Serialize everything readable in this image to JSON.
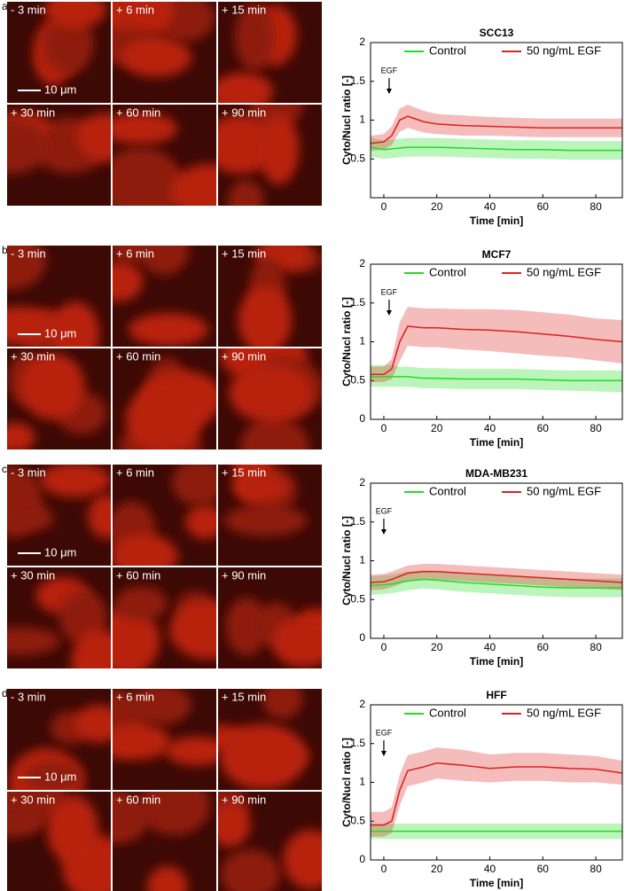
{
  "panels": [
    {
      "label": "a.",
      "images": [
        "- 3 min",
        "+ 6 min",
        "+ 15 min",
        "+ 30 min",
        "+ 60 min",
        "+ 90 min"
      ],
      "scale_bar": "10 μm"
    },
    {
      "label": "b.",
      "images": [
        "- 3 min",
        "+ 6 min",
        "+ 15 min",
        "+ 30 min",
        "+ 60 min",
        "+ 90 min"
      ],
      "scale_bar": "10 μm"
    },
    {
      "label": "c.",
      "images": [
        "- 3 min",
        "+ 6 min",
        "+ 15 min",
        "+ 30 min",
        "+ 60 min",
        "+ 90 min"
      ],
      "scale_bar": "10 μm"
    },
    {
      "label": "d.",
      "images": [
        "- 3 min",
        "+ 6 min",
        "+ 15 min",
        "+ 30 min",
        "+ 60 min",
        "+ 90 min"
      ],
      "scale_bar": "10 μm"
    }
  ],
  "chart_data": [
    {
      "type": "line",
      "title": "SCC13",
      "xlabel": "Time [min]",
      "ylabel": "Cyto/Nucl ratio [-]",
      "annotation": "EGF",
      "annotation_x": 2,
      "x": [
        -5,
        0,
        3,
        6,
        9,
        15,
        20,
        30,
        40,
        50,
        60,
        70,
        80,
        90
      ],
      "xlim": [
        -5,
        90
      ],
      "xticks": [
        0,
        20,
        40,
        60,
        80
      ],
      "ylim": [
        0,
        2
      ],
      "yticks": [
        0.5,
        1,
        1.5,
        2
      ],
      "series": [
        {
          "name": "Control",
          "color": "#22dd22",
          "values": [
            0.65,
            0.62,
            0.63,
            0.64,
            0.65,
            0.65,
            0.65,
            0.64,
            0.63,
            0.62,
            0.62,
            0.61,
            0.61,
            0.61
          ],
          "lower": [
            0.53,
            0.5,
            0.51,
            0.52,
            0.53,
            0.53,
            0.53,
            0.52,
            0.51,
            0.5,
            0.5,
            0.49,
            0.49,
            0.49
          ],
          "upper": [
            0.77,
            0.74,
            0.75,
            0.76,
            0.77,
            0.77,
            0.77,
            0.76,
            0.75,
            0.74,
            0.74,
            0.73,
            0.73,
            0.73
          ]
        },
        {
          "name": "50 ng/mL EGF",
          "color": "#dd2222",
          "values": [
            0.7,
            0.72,
            0.8,
            1.0,
            1.05,
            0.98,
            0.95,
            0.93,
            0.92,
            0.91,
            0.9,
            0.9,
            0.9,
            0.9
          ],
          "lower": [
            0.6,
            0.62,
            0.68,
            0.85,
            0.9,
            0.84,
            0.82,
            0.8,
            0.8,
            0.79,
            0.78,
            0.78,
            0.78,
            0.78
          ],
          "upper": [
            0.8,
            0.82,
            0.92,
            1.15,
            1.2,
            1.12,
            1.08,
            1.06,
            1.04,
            1.03,
            1.02,
            1.02,
            1.02,
            1.02
          ]
        }
      ]
    },
    {
      "type": "line",
      "title": "MCF7",
      "xlabel": "Time [min]",
      "ylabel": "Cyto/Nucl ratio [-]",
      "annotation": "EGF",
      "annotation_x": 2,
      "x": [
        -5,
        0,
        3,
        6,
        9,
        15,
        20,
        30,
        40,
        50,
        60,
        70,
        80,
        90
      ],
      "xlim": [
        -5,
        90
      ],
      "xticks": [
        0,
        20,
        40,
        60,
        80
      ],
      "ylim": [
        0,
        2
      ],
      "yticks": [
        0,
        0.5,
        1,
        1.5,
        2
      ],
      "series": [
        {
          "name": "Control",
          "color": "#22dd22",
          "values": [
            0.55,
            0.55,
            0.55,
            0.55,
            0.55,
            0.53,
            0.53,
            0.52,
            0.52,
            0.52,
            0.51,
            0.5,
            0.5,
            0.5
          ],
          "lower": [
            0.42,
            0.42,
            0.42,
            0.42,
            0.42,
            0.4,
            0.4,
            0.39,
            0.39,
            0.39,
            0.38,
            0.37,
            0.36,
            0.35
          ],
          "upper": [
            0.7,
            0.7,
            0.7,
            0.68,
            0.68,
            0.66,
            0.66,
            0.65,
            0.65,
            0.65,
            0.64,
            0.63,
            0.63,
            0.63
          ]
        },
        {
          "name": "50 ng/mL EGF",
          "color": "#dd2222",
          "values": [
            0.58,
            0.58,
            0.65,
            1.0,
            1.2,
            1.18,
            1.18,
            1.16,
            1.15,
            1.13,
            1.1,
            1.07,
            1.03,
            1.0
          ],
          "lower": [
            0.48,
            0.48,
            0.52,
            0.75,
            0.95,
            0.93,
            0.93,
            0.9,
            0.88,
            0.85,
            0.82,
            0.8,
            0.76,
            0.72
          ],
          "upper": [
            0.68,
            0.68,
            0.78,
            1.25,
            1.45,
            1.43,
            1.43,
            1.42,
            1.42,
            1.41,
            1.38,
            1.35,
            1.3,
            1.28
          ]
        }
      ]
    },
    {
      "type": "line",
      "title": "MDA-MB231",
      "xlabel": "Time [min]",
      "ylabel": "Cyto/Nucl ratio [-]",
      "annotation": "EGF",
      "annotation_x": 0,
      "x": [
        -5,
        0,
        3,
        6,
        9,
        15,
        20,
        30,
        40,
        50,
        60,
        70,
        80,
        90
      ],
      "xlim": [
        -5,
        90
      ],
      "xticks": [
        0,
        20,
        40,
        60,
        80
      ],
      "ylim": [
        0,
        2
      ],
      "yticks": [
        0,
        0.5,
        1,
        1.5,
        2
      ],
      "series": [
        {
          "name": "Control",
          "color": "#22dd22",
          "values": [
            0.68,
            0.69,
            0.7,
            0.72,
            0.74,
            0.76,
            0.75,
            0.72,
            0.7,
            0.68,
            0.66,
            0.65,
            0.65,
            0.65
          ],
          "lower": [
            0.56,
            0.57,
            0.58,
            0.6,
            0.62,
            0.64,
            0.63,
            0.6,
            0.58,
            0.56,
            0.54,
            0.53,
            0.53,
            0.53
          ],
          "upper": [
            0.8,
            0.81,
            0.82,
            0.84,
            0.86,
            0.88,
            0.87,
            0.84,
            0.82,
            0.8,
            0.78,
            0.77,
            0.77,
            0.77
          ]
        },
        {
          "name": "50 ng/mL EGF",
          "color": "#dd2222",
          "values": [
            0.72,
            0.73,
            0.76,
            0.8,
            0.84,
            0.86,
            0.86,
            0.84,
            0.82,
            0.8,
            0.78,
            0.76,
            0.74,
            0.72
          ],
          "lower": [
            0.62,
            0.63,
            0.66,
            0.7,
            0.74,
            0.76,
            0.76,
            0.74,
            0.72,
            0.7,
            0.68,
            0.66,
            0.64,
            0.62
          ],
          "upper": [
            0.82,
            0.83,
            0.86,
            0.9,
            0.94,
            0.96,
            0.96,
            0.94,
            0.92,
            0.9,
            0.88,
            0.86,
            0.84,
            0.82
          ]
        }
      ]
    },
    {
      "type": "line",
      "title": "HFF",
      "xlabel": "Time [min]",
      "ylabel": "Cyto/Nucl ratio [-]",
      "annotation": "EGF",
      "annotation_x": 0,
      "x": [
        -5,
        0,
        3,
        6,
        9,
        15,
        20,
        30,
        40,
        50,
        60,
        70,
        80,
        90
      ],
      "xlim": [
        -5,
        90
      ],
      "xticks": [
        0,
        20,
        40,
        60,
        80
      ],
      "ylim": [
        0,
        2
      ],
      "yticks": [
        0,
        0.5,
        1,
        1.5,
        2
      ],
      "series": [
        {
          "name": "Control",
          "color": "#22dd22",
          "values": [
            0.37,
            0.37,
            0.37,
            0.37,
            0.37,
            0.37,
            0.37,
            0.37,
            0.37,
            0.37,
            0.37,
            0.37,
            0.37,
            0.37
          ],
          "lower": [
            0.27,
            0.27,
            0.27,
            0.27,
            0.27,
            0.27,
            0.27,
            0.27,
            0.27,
            0.27,
            0.27,
            0.27,
            0.27,
            0.27
          ],
          "upper": [
            0.47,
            0.47,
            0.47,
            0.47,
            0.47,
            0.47,
            0.47,
            0.47,
            0.47,
            0.47,
            0.47,
            0.47,
            0.47,
            0.47
          ]
        },
        {
          "name": "50 ng/mL EGF",
          "color": "#dd2222",
          "values": [
            0.45,
            0.45,
            0.5,
            0.9,
            1.15,
            1.2,
            1.25,
            1.22,
            1.18,
            1.2,
            1.2,
            1.18,
            1.17,
            1.12
          ],
          "lower": [
            0.3,
            0.3,
            0.35,
            0.7,
            0.95,
            1.0,
            1.05,
            1.02,
            1.0,
            1.02,
            1.02,
            1.0,
            1.0,
            0.97
          ],
          "upper": [
            0.62,
            0.62,
            0.68,
            1.1,
            1.35,
            1.4,
            1.45,
            1.42,
            1.36,
            1.38,
            1.38,
            1.36,
            1.34,
            1.28
          ]
        }
      ]
    }
  ]
}
